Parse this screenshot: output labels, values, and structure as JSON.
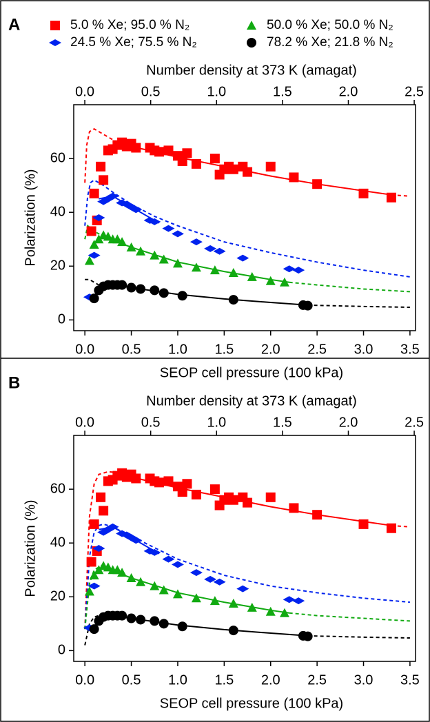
{
  "chart_data": [
    {
      "type": "scatter",
      "panel_label": "A",
      "xlabel": "SEOP cell pressure (100 kPa)",
      "x2label": "Number density at 373 K (amagat)",
      "ylabel": "Polarization (%)",
      "xlim": [
        -0.12,
        3.56
      ],
      "x2lim": [
        -0.084,
        2.51
      ],
      "ylim": [
        -4,
        80
      ],
      "xticks": [
        {
          "value": 0,
          "label": "0.0"
        },
        {
          "value": 0.5,
          "label": "0.5"
        },
        {
          "value": 1,
          "label": "1.0"
        },
        {
          "value": 1.5,
          "label": "1.5"
        },
        {
          "value": 2,
          "label": "2.0"
        },
        {
          "value": 2.5,
          "label": "2.5"
        },
        {
          "value": 3,
          "label": "3.0"
        },
        {
          "value": 3.5,
          "label": "3.5"
        }
      ],
      "x2ticks": [
        {
          "value": 0,
          "label": "0.0"
        },
        {
          "value": 0.5,
          "label": "0.5"
        },
        {
          "value": 1,
          "label": "1.0"
        },
        {
          "value": 1.5,
          "label": "1.5"
        },
        {
          "value": 2,
          "label": "2.0"
        },
        {
          "value": 2.5,
          "label": "2.5"
        }
      ],
      "yticks": [
        0,
        20,
        40,
        60
      ],
      "legend": true,
      "series": [
        {
          "name": "5.0 % Xe; 95.0 % N₂",
          "color": "#ff0000",
          "marker": "square",
          "x": [
            0.07,
            0.1,
            0.13,
            0.17,
            0.2,
            0.25,
            0.3,
            0.35,
            0.4,
            0.45,
            0.5,
            0.55,
            0.7,
            0.75,
            0.8,
            0.9,
            1.0,
            1.05,
            1.1,
            1.2,
            1.4,
            1.45,
            1.5,
            1.55,
            1.6,
            1.7,
            1.75,
            2.0,
            2.25,
            2.5,
            3.0,
            3.3
          ],
          "values": [
            33,
            47,
            37,
            57,
            52,
            63,
            63.5,
            65,
            66,
            64.5,
            65.5,
            64,
            64,
            63,
            62.5,
            63,
            61,
            59,
            62,
            58,
            60,
            54,
            56,
            57,
            56,
            57,
            55,
            57,
            53,
            50.5,
            47,
            45.5
          ]
        },
        {
          "name": "24.5 % Xe; 75.5 % N₂",
          "color": "#0022ee",
          "marker": "diamond",
          "x": [
            0.05,
            0.1,
            0.15,
            0.2,
            0.25,
            0.3,
            0.4,
            0.45,
            0.5,
            0.55,
            0.7,
            0.75,
            0.9,
            1.0,
            1.2,
            1.35,
            1.45,
            1.7,
            2.2,
            2.3
          ],
          "values": [
            8.5,
            24,
            38,
            44,
            45,
            46,
            43.5,
            43,
            42,
            41,
            37,
            36.5,
            34,
            32,
            29,
            26.5,
            25.5,
            23,
            19,
            18.5
          ]
        },
        {
          "name": "50.0 % Xe; 50.0 % N₂",
          "color": "#11aa11",
          "marker": "triangle",
          "x": [
            0.05,
            0.1,
            0.15,
            0.2,
            0.25,
            0.3,
            0.35,
            0.4,
            0.5,
            0.6,
            0.75,
            0.85,
            1.0,
            1.2,
            1.4,
            1.6,
            1.8,
            2.0,
            2.15
          ],
          "values": [
            22,
            28,
            30,
            31.5,
            31,
            30,
            30,
            29,
            27,
            25.5,
            24,
            22.5,
            21,
            19.5,
            18.5,
            17.5,
            16,
            14.5,
            14
          ]
        },
        {
          "name": "78.2 % Xe; 21.8 % N₂",
          "color": "#000000",
          "marker": "circle",
          "x": [
            0.1,
            0.15,
            0.2,
            0.25,
            0.3,
            0.35,
            0.4,
            0.5,
            0.6,
            0.75,
            0.85,
            1.05,
            1.6,
            2.35,
            2.4
          ],
          "values": [
            8,
            11,
            12.5,
            13,
            13,
            13,
            13,
            12,
            11.5,
            11,
            10,
            9,
            7.5,
            5.5,
            5.3
          ]
        }
      ],
      "lines": [
        {
          "color": "#ff0000",
          "dash": true,
          "x": [
            0.0,
            0.02,
            0.05,
            0.1,
            0.2,
            0.3
          ],
          "values": [
            51,
            65,
            70,
            71,
            69,
            67
          ]
        },
        {
          "color": "#ff0000",
          "dash": false,
          "x": [
            0.3,
            0.5,
            1.0,
            1.5,
            2.0,
            2.5,
            3.0,
            3.3
          ],
          "values": [
            66,
            64.5,
            60.5,
            57,
            53.5,
            50.5,
            48,
            46.5
          ]
        },
        {
          "color": "#ff0000",
          "dash": true,
          "x": [
            3.3,
            3.5
          ],
          "values": [
            46.5,
            46
          ]
        },
        {
          "color": "#0022ee",
          "dash": true,
          "x": [
            0,
            0.03,
            0.06,
            0.1,
            0.2,
            0.3,
            0.5,
            0.75,
            1.0,
            1.5,
            2.0,
            2.5,
            3.0,
            3.5
          ],
          "values": [
            35,
            46,
            51,
            52,
            50,
            47.5,
            43,
            38.5,
            35,
            29,
            25,
            21.5,
            18.5,
            16
          ]
        },
        {
          "color": "#0022ee",
          "dash": false,
          "x": [
            0.15,
            0.3,
            0.5,
            0.8
          ],
          "values": [
            45,
            46,
            42,
            36
          ]
        },
        {
          "color": "#11aa11",
          "dash": true,
          "x": [
            0,
            0.03,
            0.1,
            0.2
          ],
          "values": [
            30,
            35,
            33,
            31
          ]
        },
        {
          "color": "#11aa11",
          "dash": false,
          "x": [
            0.2,
            0.5,
            1.0,
            1.5,
            2.0,
            2.2
          ],
          "values": [
            31,
            27,
            21.5,
            18,
            15,
            14
          ]
        },
        {
          "color": "#11aa11",
          "dash": true,
          "x": [
            2.2,
            2.5,
            3.0,
            3.5
          ],
          "values": [
            14,
            13,
            11.5,
            10.5
          ]
        },
        {
          "color": "#000000",
          "dash": true,
          "x": [
            0,
            0.05,
            0.1,
            0.15
          ],
          "values": [
            15,
            15,
            14,
            13
          ]
        },
        {
          "color": "#000000",
          "dash": false,
          "x": [
            0.08,
            0.15,
            0.3,
            0.5,
            1.0,
            1.5,
            2.0,
            2.4
          ],
          "values": [
            7.5,
            11.5,
            13,
            12,
            9.5,
            7.8,
            6.5,
            5.5
          ]
        },
        {
          "color": "#000000",
          "dash": true,
          "x": [
            2.4,
            3.0,
            3.5
          ],
          "values": [
            5.5,
            5,
            4.7
          ]
        }
      ]
    },
    {
      "type": "scatter",
      "panel_label": "B",
      "xlabel": "SEOP cell pressure (100 kPa)",
      "x2label": "Number density at 373 K (amagat)",
      "ylabel": "Polarization (%)",
      "xlim": [
        -0.12,
        3.56
      ],
      "x2lim": [
        -0.084,
        2.51
      ],
      "ylim": [
        -4,
        80
      ],
      "xticks": [
        {
          "value": 0,
          "label": "0.0"
        },
        {
          "value": 0.5,
          "label": "0.5"
        },
        {
          "value": 1,
          "label": "1.0"
        },
        {
          "value": 1.5,
          "label": "1.5"
        },
        {
          "value": 2,
          "label": "2.0"
        },
        {
          "value": 2.5,
          "label": "2.5"
        },
        {
          "value": 3,
          "label": "3.0"
        },
        {
          "value": 3.5,
          "label": "3.5"
        }
      ],
      "x2ticks": [
        {
          "value": 0,
          "label": "0.0"
        },
        {
          "value": 0.5,
          "label": "0.5"
        },
        {
          "value": 1,
          "label": "1.0"
        },
        {
          "value": 1.5,
          "label": "1.5"
        },
        {
          "value": 2,
          "label": "2.0"
        },
        {
          "value": 2.5,
          "label": "2.5"
        }
      ],
      "yticks": [
        0,
        20,
        40,
        60
      ],
      "legend": false,
      "series": [
        {
          "color": "#ff0000",
          "marker": "square",
          "x": [
            0.07,
            0.1,
            0.13,
            0.17,
            0.2,
            0.25,
            0.3,
            0.35,
            0.4,
            0.45,
            0.5,
            0.55,
            0.7,
            0.75,
            0.8,
            0.9,
            1.0,
            1.05,
            1.1,
            1.2,
            1.4,
            1.45,
            1.5,
            1.55,
            1.6,
            1.7,
            1.75,
            2.0,
            2.25,
            2.5,
            3.0,
            3.3
          ],
          "values": [
            33,
            47,
            37,
            57,
            52,
            63,
            63.5,
            65,
            66,
            64.5,
            65.5,
            64,
            64,
            63,
            62.5,
            63,
            61,
            59,
            62,
            58,
            60,
            54,
            56,
            57,
            56,
            57,
            55,
            57,
            53,
            50.5,
            47,
            45.5
          ]
        },
        {
          "color": "#0022ee",
          "marker": "diamond",
          "x": [
            0.05,
            0.1,
            0.15,
            0.2,
            0.25,
            0.3,
            0.4,
            0.45,
            0.5,
            0.55,
            0.7,
            0.75,
            0.9,
            1.0,
            1.2,
            1.35,
            1.45,
            1.7,
            2.2,
            2.3
          ],
          "values": [
            8.5,
            24,
            38,
            44,
            45,
            46,
            43.5,
            43,
            42,
            41,
            37,
            36.5,
            34,
            32,
            29,
            26.5,
            25.5,
            23,
            19,
            18.5
          ]
        },
        {
          "color": "#11aa11",
          "marker": "triangle",
          "x": [
            0.05,
            0.1,
            0.15,
            0.2,
            0.25,
            0.3,
            0.35,
            0.4,
            0.5,
            0.6,
            0.75,
            0.85,
            1.0,
            1.2,
            1.4,
            1.6,
            1.8,
            2.0,
            2.15
          ],
          "values": [
            22,
            28,
            30,
            31.5,
            31,
            30,
            30,
            29,
            27,
            25.5,
            24,
            22.5,
            21,
            19.5,
            18.5,
            17.5,
            16,
            14.5,
            14
          ]
        },
        {
          "color": "#000000",
          "marker": "circle",
          "x": [
            0.1,
            0.15,
            0.2,
            0.25,
            0.3,
            0.35,
            0.4,
            0.5,
            0.6,
            0.75,
            0.85,
            1.05,
            1.6,
            2.35,
            2.4
          ],
          "values": [
            8,
            11,
            12.5,
            13,
            13,
            13,
            13,
            12,
            11.5,
            11,
            10,
            9,
            7.5,
            5.5,
            5.3
          ]
        }
      ],
      "lines": [
        {
          "color": "#ff0000",
          "dash": true,
          "x": [
            0,
            0.05,
            0.1,
            0.15,
            0.25,
            0.4
          ],
          "values": [
            8,
            50,
            62,
            65.5,
            66.5,
            66
          ]
        },
        {
          "color": "#ff0000",
          "dash": false,
          "x": [
            0.4,
            0.5,
            1.0,
            1.5,
            2.0,
            2.5,
            3.0,
            3.3
          ],
          "values": [
            66,
            64.5,
            60.5,
            57,
            53.5,
            50.5,
            48,
            46.5
          ]
        },
        {
          "color": "#ff0000",
          "dash": true,
          "x": [
            3.3,
            3.5
          ],
          "values": [
            46.5,
            46
          ]
        },
        {
          "color": "#0022ee",
          "dash": true,
          "x": [
            0,
            0.05,
            0.1,
            0.15,
            0.2,
            0.3,
            0.5,
            1.0,
            1.5,
            2.0,
            2.5,
            3.0,
            3.5
          ],
          "values": [
            8,
            35,
            44,
            46.5,
            47,
            46,
            42.5,
            34,
            28,
            24,
            21.5,
            19.5,
            18
          ]
        },
        {
          "color": "#0022ee",
          "dash": false,
          "x": [
            0.15,
            0.3,
            0.5,
            0.8
          ],
          "values": [
            45,
            46,
            42,
            36
          ]
        },
        {
          "color": "#11aa11",
          "dash": true,
          "x": [
            0,
            0.05,
            0.1,
            0.2
          ],
          "values": [
            8,
            25,
            30,
            32
          ]
        },
        {
          "color": "#11aa11",
          "dash": false,
          "x": [
            0.2,
            0.5,
            1.0,
            1.5,
            2.0,
            2.2
          ],
          "values": [
            31,
            27,
            21.5,
            18,
            15,
            14
          ]
        },
        {
          "color": "#11aa11",
          "dash": true,
          "x": [
            2.2,
            2.5,
            3.0,
            3.5
          ],
          "values": [
            14,
            13,
            12,
            11
          ]
        },
        {
          "color": "#000000",
          "dash": true,
          "x": [
            0,
            0.05,
            0.1,
            0.2
          ],
          "values": [
            2,
            10,
            12.5,
            13.5
          ]
        },
        {
          "color": "#000000",
          "dash": false,
          "x": [
            0.08,
            0.15,
            0.3,
            0.5,
            1.0,
            1.5,
            2.0,
            2.4
          ],
          "values": [
            7.5,
            11.5,
            13,
            12,
            9.5,
            7.8,
            6.5,
            5.5
          ]
        },
        {
          "color": "#000000",
          "dash": true,
          "x": [
            2.4,
            3.0,
            3.5
          ],
          "values": [
            5.5,
            5,
            4.7
          ]
        }
      ]
    }
  ]
}
